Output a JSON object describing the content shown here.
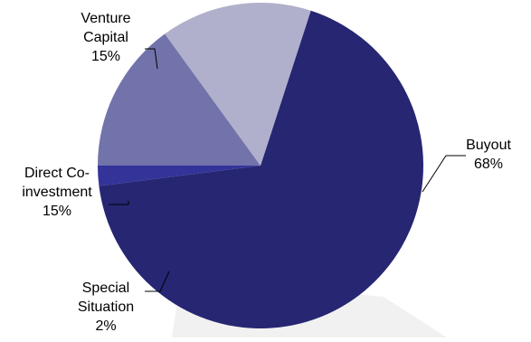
{
  "chart_data": {
    "type": "pie",
    "title": "",
    "slices": [
      {
        "label_lines": [
          "Buyout"
        ],
        "value": 68,
        "value_text": "68%",
        "color": "#262673"
      },
      {
        "label_lines": [
          "Special",
          "Situation"
        ],
        "value": 2,
        "value_text": "2%",
        "color": "#33339a"
      },
      {
        "label_lines": [
          "Direct Co-",
          "investment"
        ],
        "value": 15,
        "value_text": "15%",
        "color": "#7373ab"
      },
      {
        "label_lines": [
          "Venture",
          "Capital"
        ],
        "value": 15,
        "value_text": "15%",
        "color": "#b0b0cc"
      }
    ],
    "start_angle_deg": 18,
    "direction": "clockwise",
    "legend": "none",
    "data_labels": "outside with leader lines"
  }
}
